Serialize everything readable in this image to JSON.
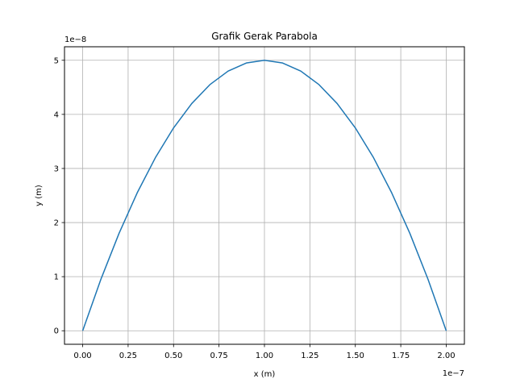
{
  "chart_data": {
    "type": "line",
    "title": "Grafik Gerak Parabola",
    "xlabel": "x (m)",
    "ylabel": "y (m)",
    "x_offset_label": "1e−7",
    "y_offset_label": "1e−8",
    "xlim": [
      -0.1,
      2.1
    ],
    "ylim": [
      -0.25,
      5.25
    ],
    "x_scale_factor": 1e-07,
    "y_scale_factor": 1e-08,
    "x_ticks": [
      0.0,
      0.25,
      0.5,
      0.75,
      1.0,
      1.25,
      1.5,
      1.75,
      2.0
    ],
    "x_tick_labels": [
      "0.00",
      "0.25",
      "0.50",
      "0.75",
      "1.00",
      "1.25",
      "1.50",
      "1.75",
      "2.00"
    ],
    "y_ticks": [
      0,
      1,
      2,
      3,
      4,
      5
    ],
    "y_tick_labels": [
      "0",
      "1",
      "2",
      "3",
      "4",
      "5"
    ],
    "grid": true,
    "series": [
      {
        "color": "#1f77b4",
        "x": [
          0.0,
          0.1,
          0.2,
          0.3,
          0.4,
          0.5,
          0.6,
          0.7,
          0.8,
          0.9,
          1.0,
          1.1,
          1.2,
          1.3,
          1.4,
          1.5,
          1.6,
          1.7,
          1.8,
          1.9,
          2.0
        ],
        "y": [
          0.0,
          0.95,
          1.8,
          2.55,
          3.2,
          3.75,
          4.2,
          4.55,
          4.8,
          4.95,
          5.0,
          4.95,
          4.8,
          4.55,
          4.2,
          3.75,
          3.2,
          2.55,
          1.8,
          0.95,
          0.0
        ]
      }
    ]
  }
}
